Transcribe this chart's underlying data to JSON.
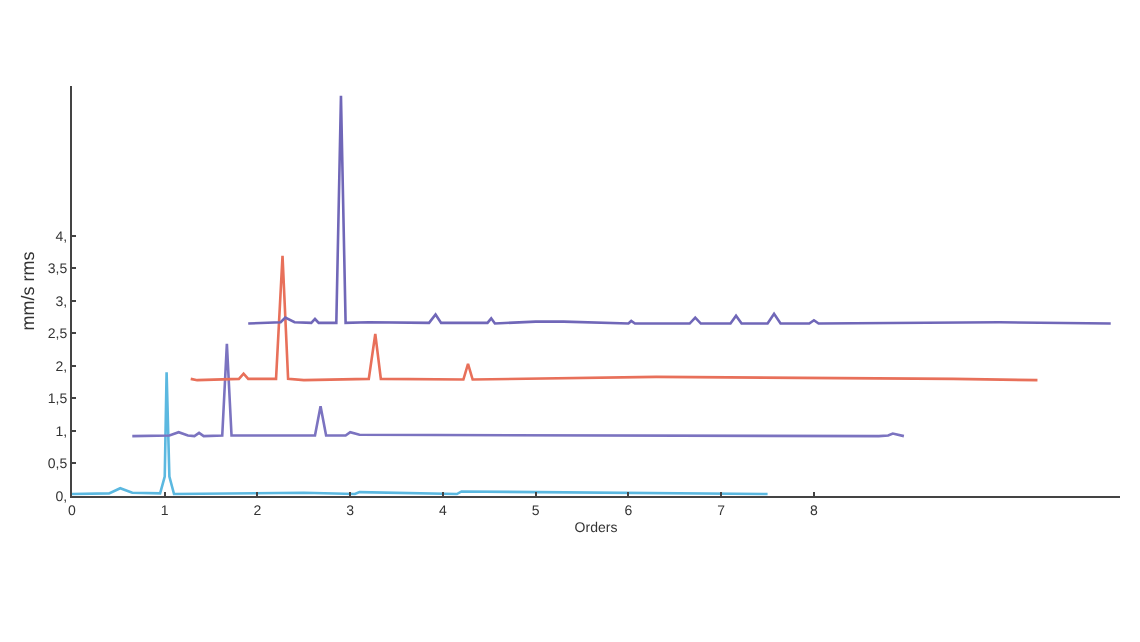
{
  "chart_data": {
    "type": "line",
    "xlabel": "Orders",
    "ylabel": "mm/s rms",
    "xlim": [
      0,
      11.3
    ],
    "ylim": [
      0,
      6.3
    ],
    "xticks": [
      0,
      1,
      2,
      3,
      4,
      5,
      6,
      7,
      8
    ],
    "yticks": [
      {
        "value": 0,
        "label": "0,"
      },
      {
        "value": 0.5,
        "label": "0,5"
      },
      {
        "value": 1,
        "label": "1,"
      },
      {
        "value": 1.5,
        "label": "1,5"
      },
      {
        "value": 2,
        "label": "2,"
      },
      {
        "value": 2.5,
        "label": "2,5"
      },
      {
        "value": 3,
        "label": "3,"
      },
      {
        "value": 3.5,
        "label": "3,5"
      },
      {
        "value": 4,
        "label": "4,"
      }
    ],
    "grid": false,
    "marker": "none",
    "line_style": "solid",
    "series": [
      {
        "color": "#5bb8e0",
        "x": [
          0,
          0.4,
          0.52,
          0.65,
          0.95,
          1.0,
          1.02,
          1.05,
          1.1,
          2.5,
          3.05,
          3.1,
          4.15,
          4.2,
          7.5
        ],
        "values": [
          0.03,
          0.04,
          0.12,
          0.05,
          0.04,
          0.3,
          1.9,
          0.3,
          0.03,
          0.05,
          0.03,
          0.06,
          0.03,
          0.07,
          0.03
        ]
      },
      {
        "color": "#7b73c0",
        "x": [
          0.65,
          1.05,
          1.15,
          1.25,
          1.32,
          1.37,
          1.42,
          1.62,
          1.67,
          1.72,
          2.62,
          2.68,
          2.74,
          2.95,
          3.0,
          3.1,
          8.7,
          8.8,
          8.85,
          8.97
        ],
        "values": [
          0.92,
          0.93,
          0.98,
          0.93,
          0.92,
          0.97,
          0.92,
          0.93,
          2.34,
          0.93,
          0.93,
          1.38,
          0.93,
          0.93,
          0.98,
          0.94,
          0.92,
          0.93,
          0.96,
          0.92
        ]
      },
      {
        "color": "#e8705a",
        "x": [
          1.28,
          1.35,
          1.8,
          1.85,
          1.9,
          2.2,
          2.27,
          2.33,
          2.5,
          3.2,
          3.27,
          3.33,
          4.22,
          4.27,
          4.32,
          6.3,
          9.5,
          10.41
        ],
        "values": [
          1.8,
          1.78,
          1.8,
          1.88,
          1.8,
          1.8,
          3.69,
          1.8,
          1.78,
          1.8,
          2.49,
          1.8,
          1.79,
          2.03,
          1.79,
          1.83,
          1.8,
          1.78
        ]
      },
      {
        "color": "#7067b8",
        "x": [
          1.9,
          2.25,
          2.3,
          2.4,
          2.58,
          2.62,
          2.66,
          2.85,
          2.9,
          2.95,
          3.2,
          3.85,
          3.92,
          3.98,
          4.48,
          4.52,
          4.56,
          5.0,
          5.3,
          6.0,
          6.03,
          6.07,
          6.66,
          6.72,
          6.78,
          7.1,
          7.16,
          7.22,
          7.5,
          7.57,
          7.64,
          7.95,
          8.0,
          8.05,
          10.0,
          11.2
        ],
        "values": [
          2.65,
          2.67,
          2.74,
          2.67,
          2.66,
          2.72,
          2.66,
          2.66,
          6.15,
          2.66,
          2.67,
          2.66,
          2.79,
          2.66,
          2.66,
          2.73,
          2.65,
          2.68,
          2.68,
          2.65,
          2.69,
          2.65,
          2.65,
          2.74,
          2.65,
          2.65,
          2.77,
          2.65,
          2.65,
          2.8,
          2.65,
          2.65,
          2.7,
          2.65,
          2.67,
          2.65
        ]
      }
    ]
  }
}
